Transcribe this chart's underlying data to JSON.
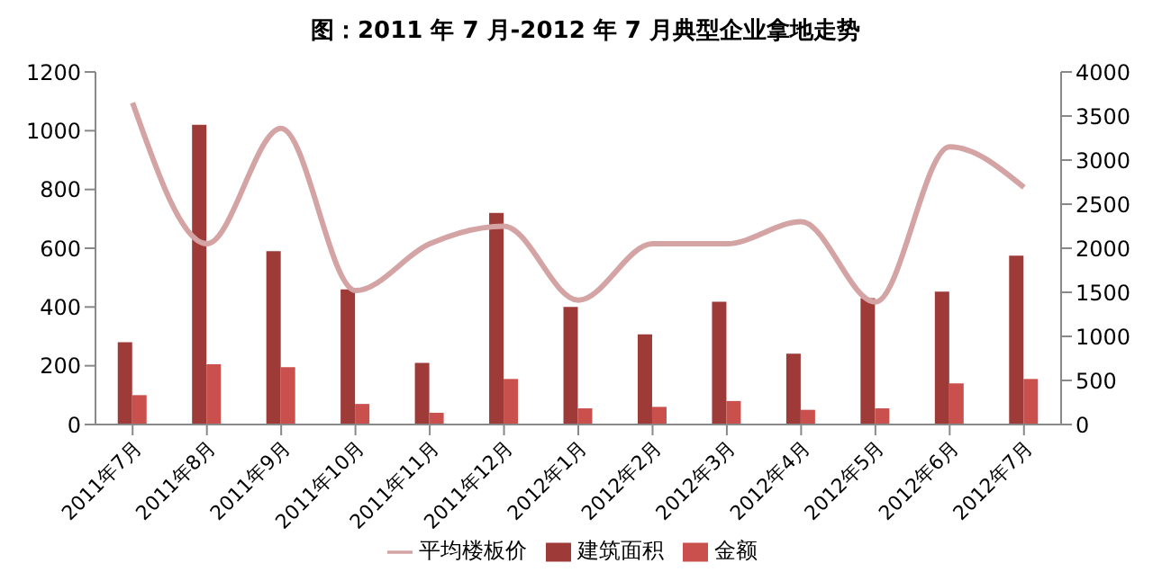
{
  "chart_data": {
    "type": "bar",
    "title": "图：2011 年 7 月-2012 年 7 月典型企业拿地走势",
    "categories": [
      "2011年7月",
      "2011年8月",
      "2011年9月",
      "2011年10月",
      "2011年11月",
      "2011年12月",
      "2012年1月",
      "2012年2月",
      "2012年3月",
      "2012年4月",
      "2012年5月",
      "2012年6月",
      "2012年7月"
    ],
    "series": [
      {
        "name": "建筑面积",
        "color": "#9e3b39",
        "values": [
          280,
          1020,
          590,
          460,
          210,
          720,
          400,
          307,
          418,
          241,
          430,
          452,
          575
        ]
      },
      {
        "name": "金额",
        "color": "#c9504d",
        "values": [
          100,
          205,
          195,
          70,
          40,
          155,
          55,
          60,
          80,
          50,
          55,
          140,
          155
        ]
      },
      {
        "name": "平均楼板价",
        "type": "line",
        "axis": "y2",
        "color": "#d4a3a3",
        "values": [
          3650,
          2050,
          3360,
          1520,
          2050,
          2250,
          1410,
          2050,
          2050,
          2300,
          1390,
          3150,
          2690
        ]
      }
    ],
    "ylim": [
      0,
      1200
    ],
    "yticks": [
      0,
      200,
      400,
      600,
      800,
      1000,
      1200
    ],
    "y2lim": [
      0,
      4000
    ],
    "y2ticks": [
      0,
      500,
      1000,
      1500,
      2000,
      2500,
      3000,
      3500,
      4000
    ],
    "legend": "bottom",
    "grid": false
  }
}
